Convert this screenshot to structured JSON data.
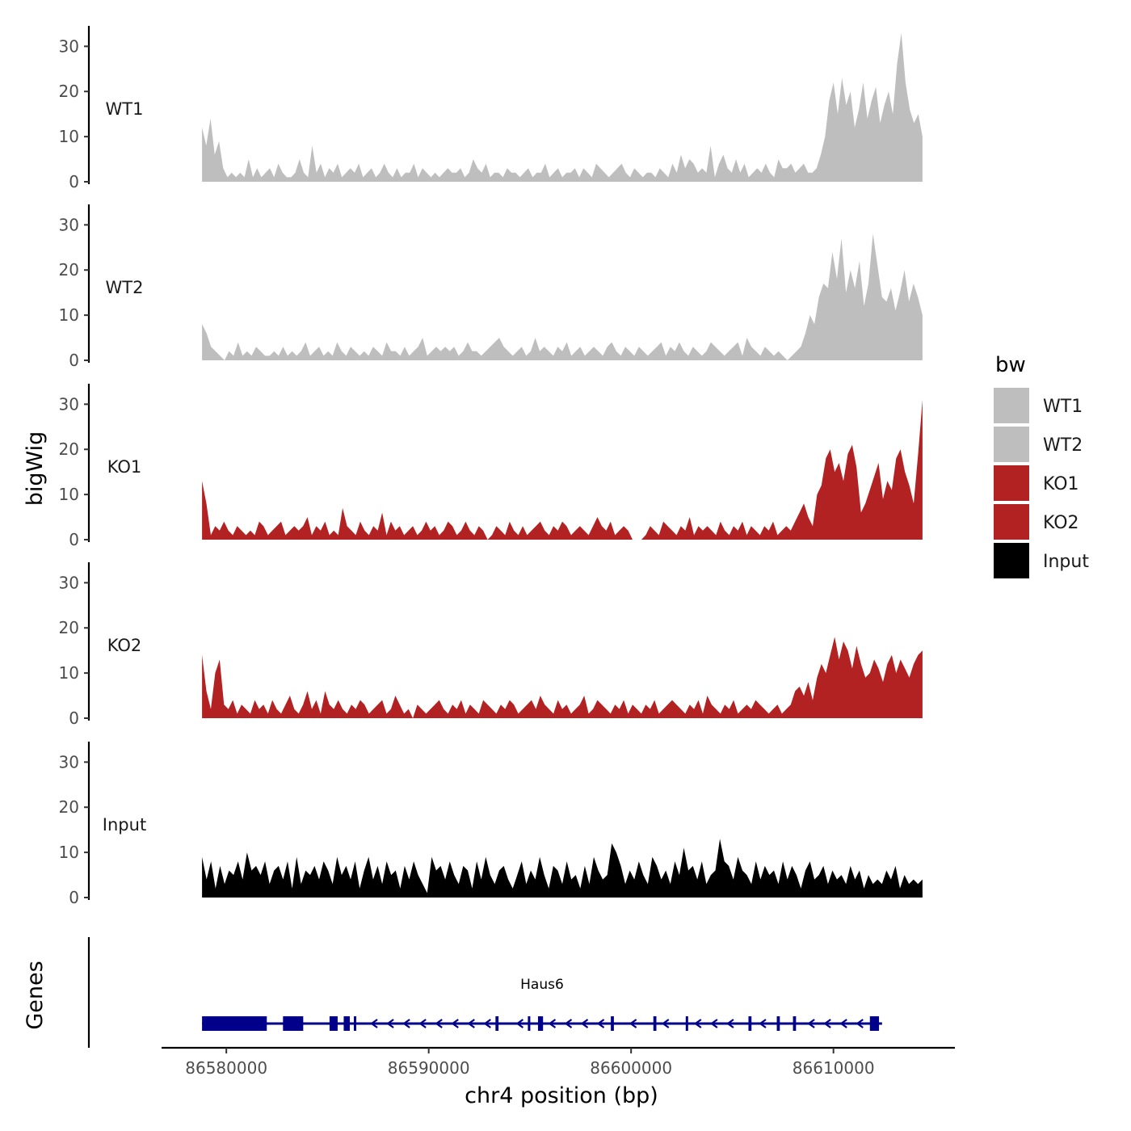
{
  "chart_data": {
    "type": "area",
    "x_range": [
      86578800,
      86614400
    ],
    "xlim": [
      86576800,
      86616000
    ],
    "ylim": [
      0,
      34
    ],
    "y_ticks": [
      0,
      10,
      20,
      30
    ],
    "y_tick_labels": [
      "0",
      "10",
      "20",
      "30"
    ],
    "x_ticks": [
      86580000,
      86590000,
      86600000,
      86610000
    ],
    "x_tick_labels": [
      "86580000",
      "86590000",
      "86600000",
      "86610000"
    ],
    "ylabel": "bigWig",
    "xlabel": "chr4 position (bp)",
    "genes_label": "Genes",
    "legend": {
      "title": "bw",
      "items": [
        {
          "label": "WT1",
          "color": "#bebebe"
        },
        {
          "label": "WT2",
          "color": "#bebebe"
        },
        {
          "label": "KO1",
          "color": "#b22222"
        },
        {
          "label": "KO2",
          "color": "#b22222"
        },
        {
          "label": "Input",
          "color": "#000000"
        }
      ]
    },
    "series": [
      {
        "name": "WT1",
        "color": "#bebebe",
        "values": [
          12,
          8,
          14,
          6,
          9,
          3,
          1,
          2,
          1,
          2,
          1,
          5,
          1,
          3,
          1,
          2,
          3,
          1,
          4,
          2,
          1,
          1,
          2,
          5,
          2,
          1,
          8,
          2,
          4,
          1,
          3,
          2,
          4,
          1,
          2,
          3,
          2,
          4,
          1,
          2,
          3,
          1,
          2,
          4,
          2,
          1,
          3,
          1,
          2,
          2,
          4,
          1,
          3,
          2,
          1,
          2,
          1,
          2,
          3,
          2,
          2,
          3,
          1,
          2,
          5,
          3,
          2,
          4,
          1,
          2,
          2,
          1,
          3,
          2,
          2,
          1,
          2,
          3,
          1,
          2,
          2,
          4,
          1,
          2,
          3,
          1,
          2,
          2,
          3,
          1,
          3,
          2,
          1,
          4,
          3,
          2,
          1,
          2,
          3,
          4,
          2,
          1,
          3,
          2,
          1,
          2,
          2,
          1,
          3,
          2,
          1,
          4,
          2,
          6,
          3,
          5,
          4,
          2,
          3,
          2,
          8,
          1,
          4,
          6,
          3,
          2,
          5,
          2,
          4,
          1,
          2,
          3,
          2,
          4,
          2,
          1,
          5,
          3,
          3,
          4,
          2,
          3,
          4,
          2,
          2,
          3,
          6,
          10,
          18,
          22,
          15,
          23,
          17,
          20,
          12,
          16,
          22,
          14,
          18,
          21,
          13,
          17,
          20,
          15,
          26,
          33,
          22,
          16,
          13,
          15,
          10
        ]
      },
      {
        "name": "WT2",
        "color": "#bebebe",
        "values": [
          8,
          6,
          3,
          2,
          1,
          0,
          2,
          1,
          4,
          1,
          2,
          1,
          3,
          2,
          1,
          1,
          2,
          1,
          3,
          1,
          2,
          1,
          2,
          4,
          1,
          2,
          3,
          1,
          2,
          1,
          4,
          2,
          1,
          3,
          2,
          1,
          2,
          1,
          3,
          2,
          1,
          4,
          2,
          2,
          1,
          3,
          1,
          2,
          3,
          5,
          1,
          2,
          3,
          2,
          3,
          2,
          3,
          1,
          2,
          4,
          2,
          2,
          1,
          2,
          3,
          4,
          5,
          3,
          2,
          1,
          2,
          3,
          1,
          2,
          5,
          2,
          3,
          2,
          1,
          3,
          2,
          4,
          1,
          2,
          3,
          1,
          2,
          3,
          2,
          1,
          3,
          4,
          2,
          1,
          3,
          2,
          1,
          3,
          2,
          1,
          2,
          3,
          4,
          1,
          3,
          2,
          4,
          2,
          1,
          3,
          2,
          1,
          2,
          4,
          3,
          2,
          1,
          2,
          3,
          4,
          1,
          5,
          3,
          2,
          1,
          3,
          2,
          1,
          2,
          1,
          0,
          1,
          2,
          3,
          6,
          10,
          8,
          14,
          17,
          16,
          24,
          18,
          27,
          15,
          20,
          16,
          22,
          12,
          17,
          28,
          21,
          14,
          13,
          16,
          11,
          15,
          20,
          13,
          17,
          14,
          10
        ]
      },
      {
        "name": "KO1",
        "color": "#b22222",
        "values": [
          13,
          8,
          1,
          3,
          2,
          4,
          2,
          1,
          3,
          2,
          1,
          2,
          1,
          4,
          3,
          1,
          2,
          3,
          4,
          1,
          2,
          3,
          2,
          3,
          5,
          1,
          3,
          2,
          4,
          1,
          2,
          1,
          7,
          3,
          2,
          1,
          4,
          2,
          1,
          3,
          2,
          6,
          1,
          4,
          2,
          3,
          1,
          2,
          3,
          1,
          2,
          4,
          2,
          3,
          1,
          2,
          4,
          3,
          1,
          2,
          4,
          2,
          1,
          3,
          2,
          0,
          1,
          3,
          2,
          1,
          4,
          2,
          1,
          3,
          1,
          2,
          3,
          4,
          2,
          1,
          3,
          2,
          4,
          3,
          1,
          2,
          3,
          2,
          1,
          3,
          5,
          3,
          2,
          4,
          1,
          2,
          3,
          2,
          0,
          0,
          0,
          1,
          3,
          2,
          1,
          4,
          3,
          2,
          1,
          3,
          2,
          5,
          1,
          3,
          2,
          3,
          2,
          1,
          4,
          2,
          1,
          3,
          2,
          4,
          1,
          3,
          2,
          1,
          3,
          2,
          4,
          1,
          2,
          3,
          2,
          4,
          6,
          8,
          5,
          3,
          10,
          12,
          18,
          20,
          15,
          17,
          13,
          19,
          21,
          16,
          6,
          8,
          11,
          14,
          17,
          9,
          13,
          11,
          18,
          20,
          15,
          12,
          8,
          19,
          31
        ]
      },
      {
        "name": "KO2",
        "color": "#b22222",
        "values": [
          14,
          6,
          2,
          10,
          13,
          3,
          2,
          4,
          1,
          3,
          2,
          1,
          4,
          2,
          3,
          1,
          4,
          2,
          1,
          3,
          5,
          2,
          1,
          3,
          6,
          2,
          4,
          1,
          6,
          3,
          2,
          4,
          2,
          1,
          3,
          2,
          4,
          3,
          1,
          2,
          3,
          4,
          1,
          2,
          5,
          3,
          1,
          2,
          0,
          3,
          2,
          1,
          2,
          3,
          4,
          2,
          1,
          3,
          2,
          4,
          1,
          3,
          2,
          1,
          4,
          3,
          2,
          1,
          3,
          2,
          4,
          3,
          1,
          2,
          3,
          4,
          2,
          5,
          3,
          2,
          1,
          4,
          2,
          3,
          1,
          2,
          3,
          5,
          1,
          2,
          4,
          3,
          2,
          1,
          3,
          2,
          4,
          1,
          3,
          2,
          1,
          3,
          2,
          4,
          1,
          2,
          3,
          4,
          3,
          2,
          1,
          3,
          2,
          4,
          1,
          5,
          3,
          2,
          1,
          3,
          2,
          4,
          1,
          2,
          3,
          2,
          4,
          3,
          2,
          1,
          2,
          3,
          1,
          2,
          3,
          6,
          7,
          5,
          8,
          4,
          9,
          12,
          10,
          14,
          18,
          13,
          17,
          15,
          11,
          16,
          12,
          9,
          10,
          13,
          11,
          8,
          12,
          14,
          10,
          13,
          11,
          9,
          12,
          14,
          15
        ]
      },
      {
        "name": "Input",
        "color": "#000000",
        "values": [
          9,
          4,
          8,
          2,
          7,
          3,
          6,
          5,
          8,
          4,
          10,
          6,
          7,
          5,
          8,
          3,
          6,
          7,
          4,
          8,
          2,
          9,
          3,
          6,
          5,
          7,
          4,
          8,
          6,
          3,
          9,
          5,
          7,
          4,
          8,
          2,
          6,
          9,
          4,
          7,
          3,
          8,
          5,
          6,
          2,
          7,
          4,
          8,
          5,
          3,
          1,
          9,
          6,
          7,
          4,
          8,
          5,
          3,
          7,
          6,
          2,
          8,
          4,
          9,
          5,
          3,
          6,
          7,
          4,
          2,
          5,
          8,
          3,
          6,
          4,
          9,
          5,
          2,
          7,
          6,
          3,
          8,
          4,
          5,
          2,
          7,
          3,
          9,
          6,
          4,
          5,
          12,
          10,
          7,
          3,
          6,
          4,
          8,
          5,
          3,
          9,
          7,
          4,
          6,
          3,
          8,
          5,
          11,
          6,
          7,
          4,
          8,
          3,
          5,
          6,
          13,
          8,
          7,
          4,
          9,
          6,
          5,
          3,
          8,
          4,
          7,
          5,
          6,
          3,
          8,
          4,
          7,
          5,
          2,
          6,
          8,
          4,
          5,
          7,
          3,
          6,
          4,
          5,
          3,
          7,
          4,
          6,
          2,
          5,
          3,
          4,
          3,
          6,
          4,
          7,
          2,
          5,
          3,
          4,
          3,
          4
        ]
      }
    ],
    "gene": {
      "name": "Haus6",
      "strand": "-",
      "start": 86578800,
      "end": 86612400,
      "exons": [
        [
          86578800,
          86582000
        ],
        [
          86582800,
          86583800
        ],
        [
          86585100,
          86585500
        ],
        [
          86585800,
          86586100
        ],
        [
          86586300,
          86586400
        ],
        [
          86593300,
          86593450
        ],
        [
          86594900,
          86595000
        ],
        [
          86595400,
          86595650
        ],
        [
          86599000,
          86599150
        ],
        [
          86601100,
          86601250
        ],
        [
          86602700,
          86602800
        ],
        [
          86605800,
          86605950
        ],
        [
          86607200,
          86607350
        ],
        [
          86608000,
          86608150
        ],
        [
          86611800,
          86612250
        ]
      ]
    }
  }
}
